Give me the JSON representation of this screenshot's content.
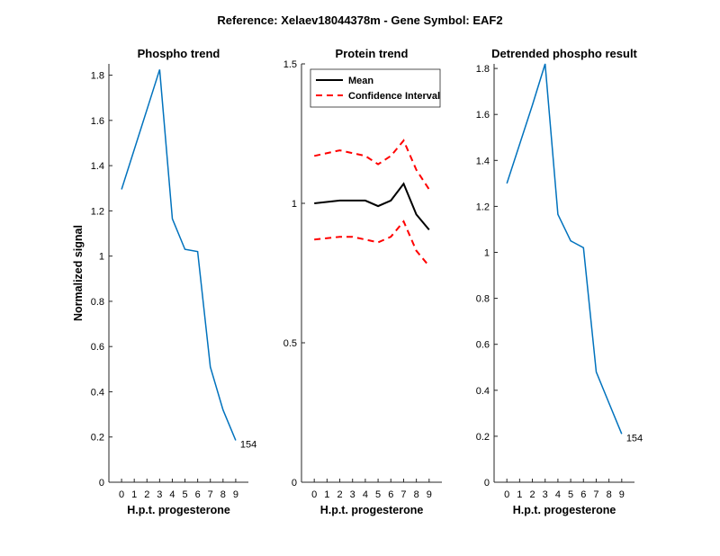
{
  "figure": {
    "suptitle": "Reference:  Xelaev18044378m - Gene Symbol:  EAF2"
  },
  "chart_data": [
    {
      "type": "line",
      "title": "Phospho trend",
      "xlabel": "H.p.t. progesterone",
      "ylabel": "Normalized signal",
      "x": [
        0,
        2,
        3,
        4,
        5,
        6,
        7,
        8,
        9
      ],
      "xticks": [
        0,
        1,
        2,
        3,
        4,
        5,
        6,
        7,
        8,
        9
      ],
      "xlim": [
        -1,
        10
      ],
      "ylim": [
        0,
        1.85
      ],
      "yticks": [
        0,
        0.2,
        0.4,
        0.6,
        0.8,
        1,
        1.2,
        1.4,
        1.6,
        1.8
      ],
      "ytick_labels": [
        "0",
        "0.2",
        "0.4",
        "0.6",
        "0.8",
        "1",
        "1.2",
        "1.4",
        "1.6",
        "1.8"
      ],
      "series": [
        {
          "color": "#0072bd",
          "style": "solid",
          "values": [
            1.295,
            1.648,
            1.825,
            1.165,
            1.03,
            1.02,
            0.51,
            0.32,
            0.185
          ]
        }
      ],
      "annotations": [
        {
          "text": "154",
          "x": 9,
          "y": 0.185
        }
      ]
    },
    {
      "type": "line",
      "title": "Protein trend",
      "xlabel": "H.p.t. progesterone",
      "ylabel": "",
      "x": [
        0,
        2,
        3,
        4,
        5,
        6,
        7,
        8,
        9
      ],
      "xticks": [
        0,
        1,
        2,
        3,
        4,
        5,
        6,
        7,
        8,
        9
      ],
      "xlim": [
        -1,
        10
      ],
      "ylim": [
        0,
        1.5
      ],
      "yticks": [
        0,
        0.5,
        1,
        1.5
      ],
      "ytick_labels": [
        "0",
        "0.5",
        "1",
        "1.5"
      ],
      "legend": {
        "placement": "top-left"
      },
      "series": [
        {
          "name": "Mean",
          "color": "#000000",
          "style": "solid",
          "values": [
            1.0,
            1.01,
            1.01,
            1.01,
            0.99,
            1.01,
            1.07,
            0.96,
            0.905
          ]
        },
        {
          "name": "Confidence Interval",
          "color": "#ff0000",
          "style": "dashed",
          "values": [
            1.17,
            1.19,
            1.18,
            1.17,
            1.14,
            1.17,
            1.225,
            1.12,
            1.05
          ]
        },
        {
          "color": "#ff0000",
          "style": "dashed",
          "values": [
            0.87,
            0.88,
            0.88,
            0.87,
            0.86,
            0.88,
            0.935,
            0.83,
            0.775
          ]
        }
      ],
      "annotations": []
    },
    {
      "type": "line",
      "title": "Detrended phospho result",
      "xlabel": "H.p.t. progesterone",
      "ylabel": "",
      "x": [
        0,
        2,
        3,
        4,
        5,
        6,
        7,
        8,
        9
      ],
      "xticks": [
        0,
        1,
        2,
        3,
        4,
        5,
        6,
        7,
        8,
        9
      ],
      "xlim": [
        -1,
        10
      ],
      "ylim": [
        0,
        1.82
      ],
      "yticks": [
        0,
        0.2,
        0.4,
        0.6,
        0.8,
        1,
        1.2,
        1.4,
        1.6,
        1.8
      ],
      "ytick_labels": [
        "0",
        "0.2",
        "0.4",
        "0.6",
        "0.8",
        "1",
        "1.2",
        "1.4",
        "1.6",
        "1.8"
      ],
      "series": [
        {
          "color": "#0072bd",
          "style": "solid",
          "values": [
            1.3,
            1.64,
            1.82,
            1.165,
            1.05,
            1.02,
            0.48,
            0.345,
            0.21
          ]
        }
      ],
      "annotations": [
        {
          "text": "154",
          "x": 9,
          "y": 0.21
        }
      ]
    }
  ]
}
